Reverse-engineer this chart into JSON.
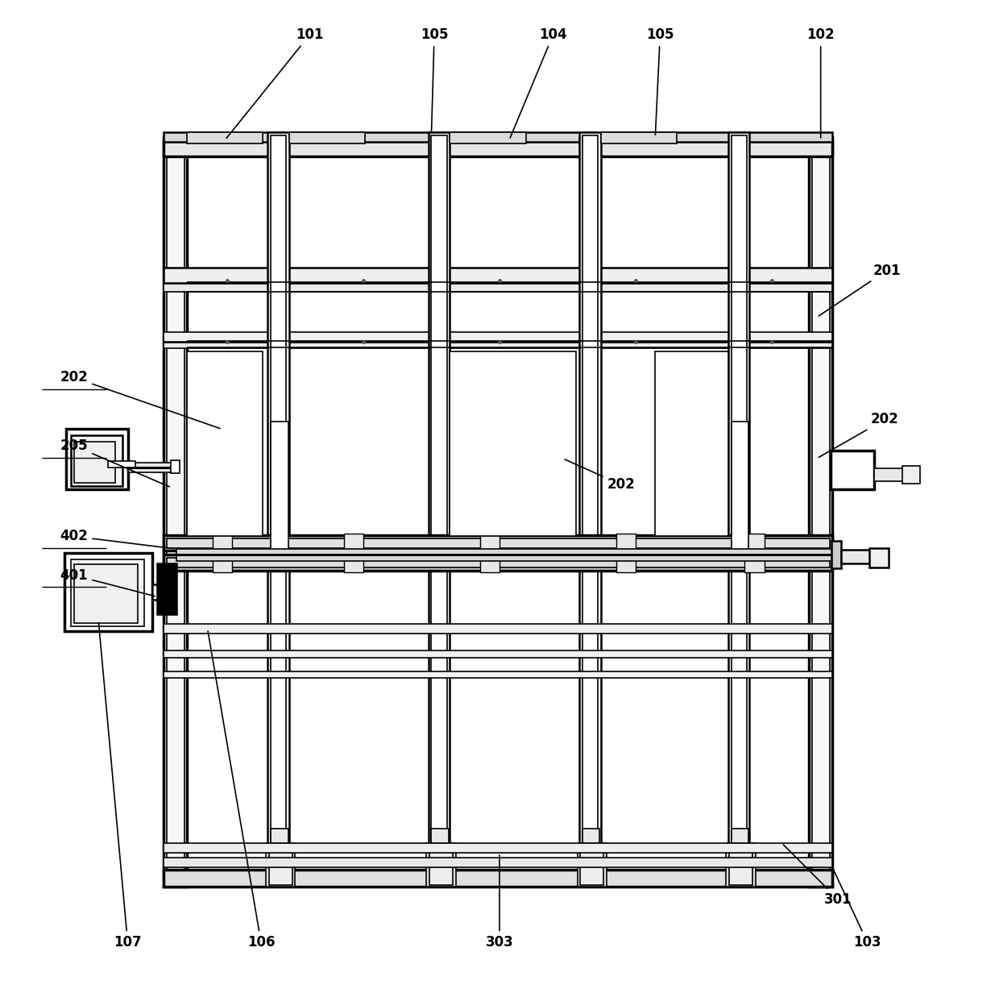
{
  "bg_color": "#ffffff",
  "line_color": "#000000",
  "fig_width": 12.4,
  "fig_height": 12.22
}
